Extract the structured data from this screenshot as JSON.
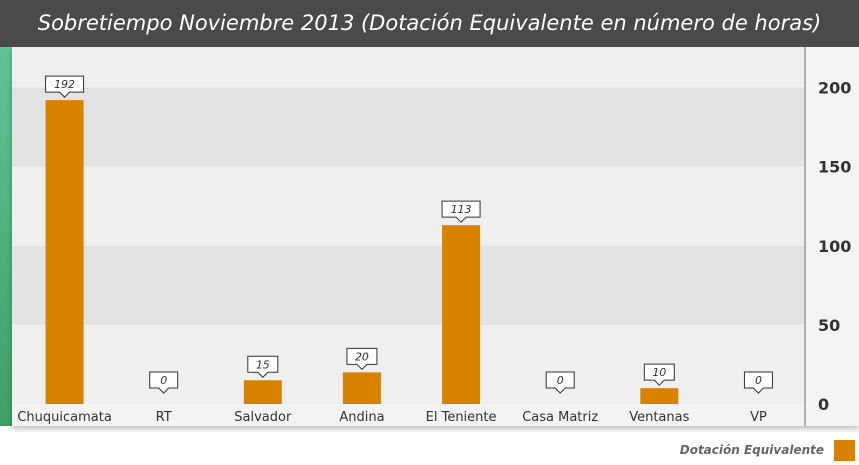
{
  "chart_data": {
    "type": "bar",
    "title": "Sobretiempo Noviembre 2013 (Dotación Equivalente en número de horas)",
    "categories": [
      "Chuquicamata",
      "RT",
      "Salvador",
      "Andina",
      "El Teniente",
      "Casa Matriz",
      "Ventanas",
      "VP"
    ],
    "series": [
      {
        "name": "Dotación Equivalente",
        "values": [
          192,
          0,
          15,
          20,
          113,
          0,
          10,
          0
        ]
      }
    ],
    "data_labels": [
      "192",
      "0",
      "15",
      "20",
      "113",
      "0",
      "10",
      "0"
    ],
    "ylim": [
      0,
      220
    ],
    "yticks": [
      0,
      50,
      100,
      150,
      200
    ],
    "ytick_labels": [
      "0",
      "50",
      "100",
      "150",
      "200"
    ],
    "y_axis_side": "right",
    "xlabel": "",
    "ylabel": "",
    "legend_position": "bottom-right",
    "grid": "horizontal bands",
    "colors": {
      "bar": "#d98200",
      "title_bar": "#4a4a4a",
      "band_dark": "#e3e3e3",
      "band_light": "#efefef",
      "axis_strip": "#f4f4f4",
      "accent_green": "#4caf7d"
    }
  }
}
